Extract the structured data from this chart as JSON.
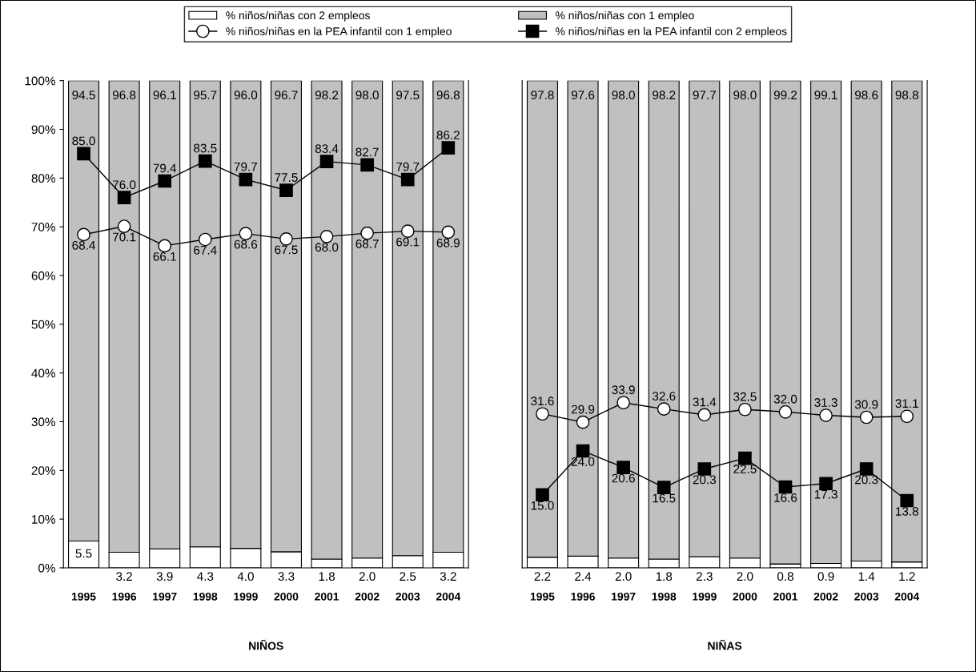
{
  "chart_data": [
    {
      "type": "bar",
      "stacked": true,
      "xlabel": "NIÑOS",
      "categories": [
        "1995",
        "1996",
        "1997",
        "1998",
        "1999",
        "2000",
        "2001",
        "2002",
        "2003",
        "2004"
      ],
      "ylim": [
        0,
        100
      ],
      "yticks": [
        {
          "value": 0,
          "label": "0%"
        },
        {
          "value": 10,
          "label": "10%"
        },
        {
          "value": 20,
          "label": "20%"
        },
        {
          "value": 30,
          "label": "30%"
        },
        {
          "value": 40,
          "label": "40%"
        },
        {
          "value": 50,
          "label": "50%"
        },
        {
          "value": 60,
          "label": "60%"
        },
        {
          "value": 70,
          "label": "70%"
        },
        {
          "value": 80,
          "label": "80%"
        },
        {
          "value": 90,
          "label": "90%"
        },
        {
          "value": 100,
          "label": "100%"
        }
      ],
      "legend": "top",
      "grid": false,
      "series": [
        {
          "name": "% niños/niñas con 2 empleos",
          "color": "#ffffff",
          "values": [
            5.5,
            3.2,
            3.9,
            4.3,
            4.0,
            3.3,
            1.8,
            2.0,
            2.5,
            3.2
          ],
          "value_labels": [
            "5.5",
            "3.2",
            "3.9",
            "4.3",
            "4.0",
            "3.3",
            "1.8",
            "2.0",
            "2.5",
            "3.2"
          ]
        },
        {
          "name": "% niños/niñas con 1 empleo",
          "color": "#c0c0c0",
          "values": [
            94.5,
            96.8,
            96.1,
            95.7,
            96.0,
            96.7,
            98.2,
            98.0,
            97.5,
            96.8
          ],
          "value_labels": [
            "94.5",
            "96.8",
            "96.1",
            "95.7",
            "96.0",
            "96.7",
            "98.2",
            "98.0",
            "97.5",
            "96.8"
          ]
        },
        {
          "name": "% niños/niñas en la PEA infantil con 1 empleo",
          "type": "line",
          "marker": "circle",
          "color": "#000000",
          "values": [
            68.4,
            70.1,
            66.1,
            67.4,
            68.6,
            67.5,
            68.0,
            68.7,
            69.1,
            68.9
          ],
          "value_labels": [
            "68.4",
            "70.1",
            "66.1",
            "67.4",
            "68.6",
            "67.5",
            "68.0",
            "68.7",
            "69.1",
            "68.9"
          ]
        },
        {
          "name": "% niños/niñas en la PEA infantil con 2 empleos",
          "type": "line",
          "marker": "square",
          "color": "#000000",
          "values": [
            85.0,
            76.0,
            79.4,
            83.5,
            79.7,
            77.5,
            83.4,
            82.7,
            79.7,
            86.2
          ],
          "value_labels": [
            "85.0",
            "76.0",
            "79.4",
            "83.5",
            "79.7",
            "77.5",
            "83.4",
            "82.7",
            "79.7",
            "86.2"
          ]
        }
      ]
    },
    {
      "type": "bar",
      "stacked": true,
      "xlabel": "NIÑAS",
      "categories": [
        "1995",
        "1996",
        "1997",
        "1998",
        "1999",
        "2000",
        "2001",
        "2002",
        "2003",
        "2004"
      ],
      "ylim": [
        0,
        100
      ],
      "tick_labels": "x",
      "grid": false,
      "series": [
        {
          "color": "#ffffff",
          "values": [
            2.2,
            2.4,
            2.0,
            1.8,
            2.3,
            2.0,
            0.8,
            0.9,
            1.4,
            1.2
          ],
          "value_labels": [
            "2.2",
            "2.4",
            "2.0",
            "1.8",
            "2.3",
            "2.0",
            "0.8",
            "0.9",
            "1.4",
            "1.2"
          ]
        },
        {
          "color": "#c0c0c0",
          "values": [
            97.8,
            97.6,
            98.0,
            98.2,
            97.7,
            98.0,
            99.2,
            99.1,
            98.6,
            98.8
          ],
          "value_labels": [
            "97.8",
            "97.6",
            "98.0",
            "98.2",
            "97.7",
            "98.0",
            "99.2",
            "99.1",
            "98.6",
            "98.8"
          ]
        },
        {
          "type": "line",
          "marker": "circle",
          "color": "#000000",
          "values": [
            31.6,
            29.9,
            33.9,
            32.6,
            31.4,
            32.5,
            32.0,
            31.3,
            30.9,
            31.1
          ],
          "value_labels": [
            "31.6",
            "29.9",
            "33.9",
            "32.6",
            "31.4",
            "32.5",
            "32.0",
            "31.3",
            "30.9",
            "31.1"
          ]
        },
        {
          "type": "line",
          "marker": "square",
          "color": "#000000",
          "values": [
            15.0,
            24.0,
            20.6,
            16.5,
            20.3,
            22.5,
            16.6,
            17.3,
            20.3,
            13.8
          ],
          "value_labels": [
            "15.0",
            "24.0",
            "20.6",
            "16.5",
            "20.3",
            "22.5",
            "16.6",
            "17.3",
            "20.3",
            "13.8"
          ]
        }
      ]
    }
  ]
}
